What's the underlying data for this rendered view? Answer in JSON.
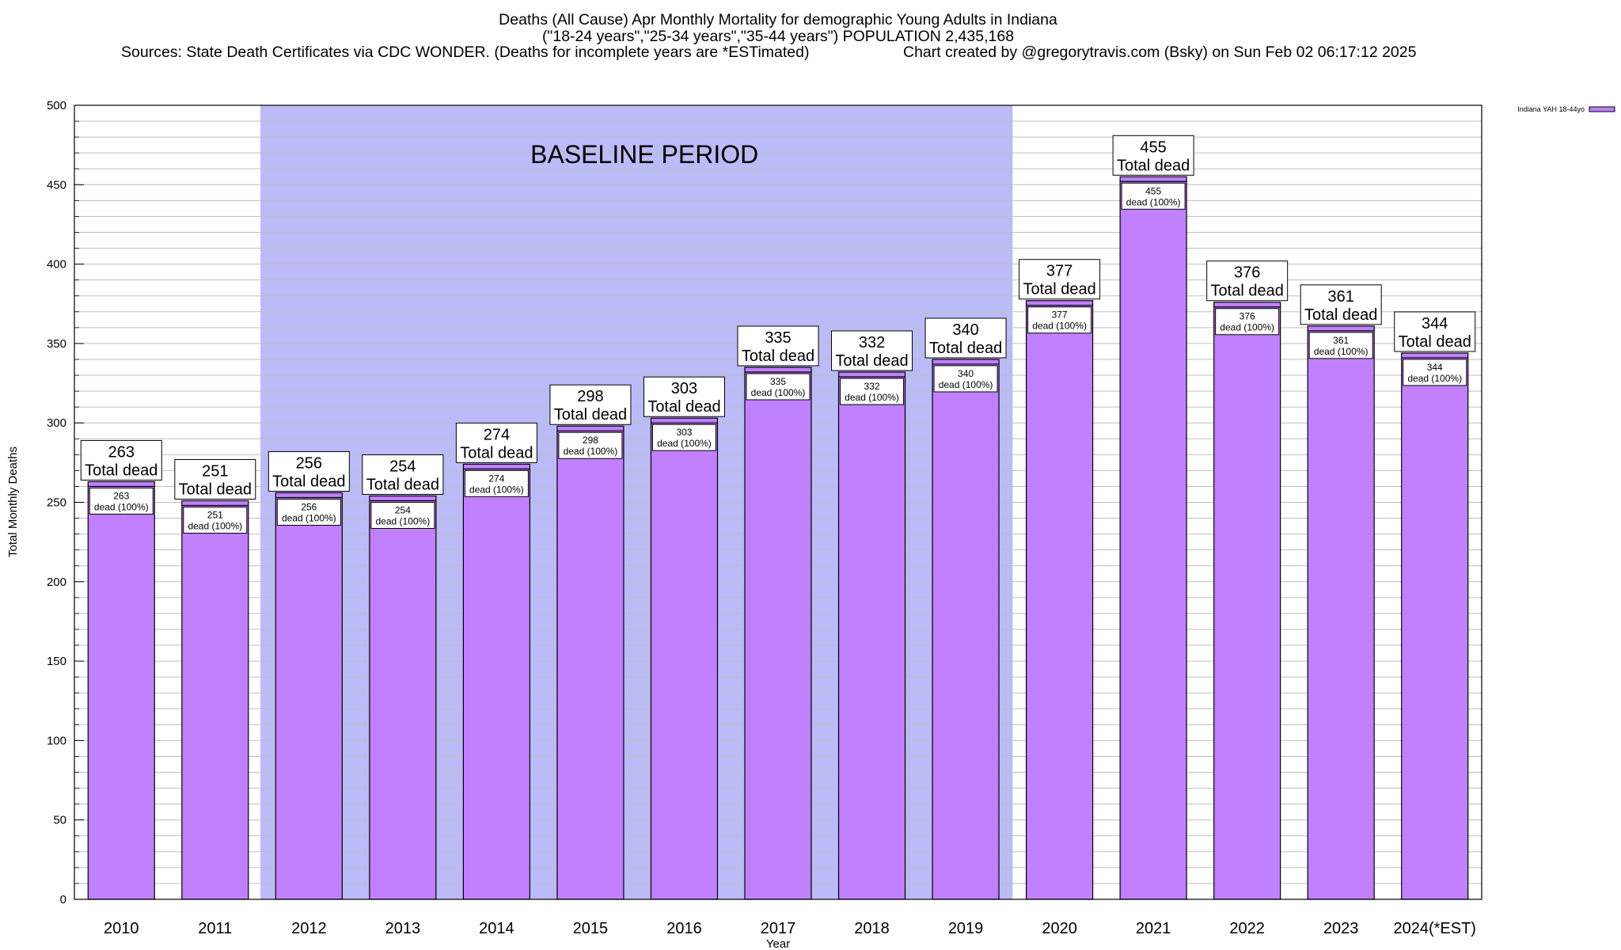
{
  "header": {
    "title": "Deaths (All Cause) Apr Monthly Mortality for demographic Young Adults in Indiana",
    "subtitle": "(\"18-24 years\",\"25-34 years\",\"35-44 years\") POPULATION 2,435,168",
    "sources": "Sources: State Death Certificates via CDC WONDER. (Deaths for incomplete years are *ESTimated)",
    "credit": "Chart created by @gregorytravis.com (Bsky) on Sun Feb 02 06:17:12 2025"
  },
  "colors": {
    "bar_fill": "#c080ff",
    "bar_outline": "#000000",
    "baseline_band": "#bbbbf8",
    "grid_line": "#bfbfbf"
  },
  "chart_data": {
    "type": "bar",
    "title": "Deaths (All Cause) Apr Monthly Mortality for demographic Young Adults in Indiana",
    "xlabel": "Year",
    "ylabel": "Total Monthly Deaths",
    "ylim": [
      0,
      500
    ],
    "yticks": [
      0,
      50,
      100,
      150,
      200,
      250,
      300,
      350,
      400,
      450,
      500
    ],
    "minor_grid_step": 10,
    "grid": true,
    "legend_position": "top-right",
    "categories": [
      "2010",
      "2011",
      "2012",
      "2013",
      "2014",
      "2015",
      "2016",
      "2017",
      "2018",
      "2019",
      "2020",
      "2021",
      "2022",
      "2023",
      "2024(*EST)"
    ],
    "series": [
      {
        "name": "Indiana YAH 18-44yo",
        "values": [
          263,
          251,
          256,
          254,
          274,
          298,
          303,
          335,
          332,
          340,
          377,
          455,
          376,
          361,
          344
        ]
      }
    ],
    "top_label_suffix": "Total dead",
    "inner_label_suffix": "dead (100%)",
    "baseline_period": {
      "label": "BASELINE PERIOD",
      "start": "2012",
      "end": "2019"
    }
  }
}
